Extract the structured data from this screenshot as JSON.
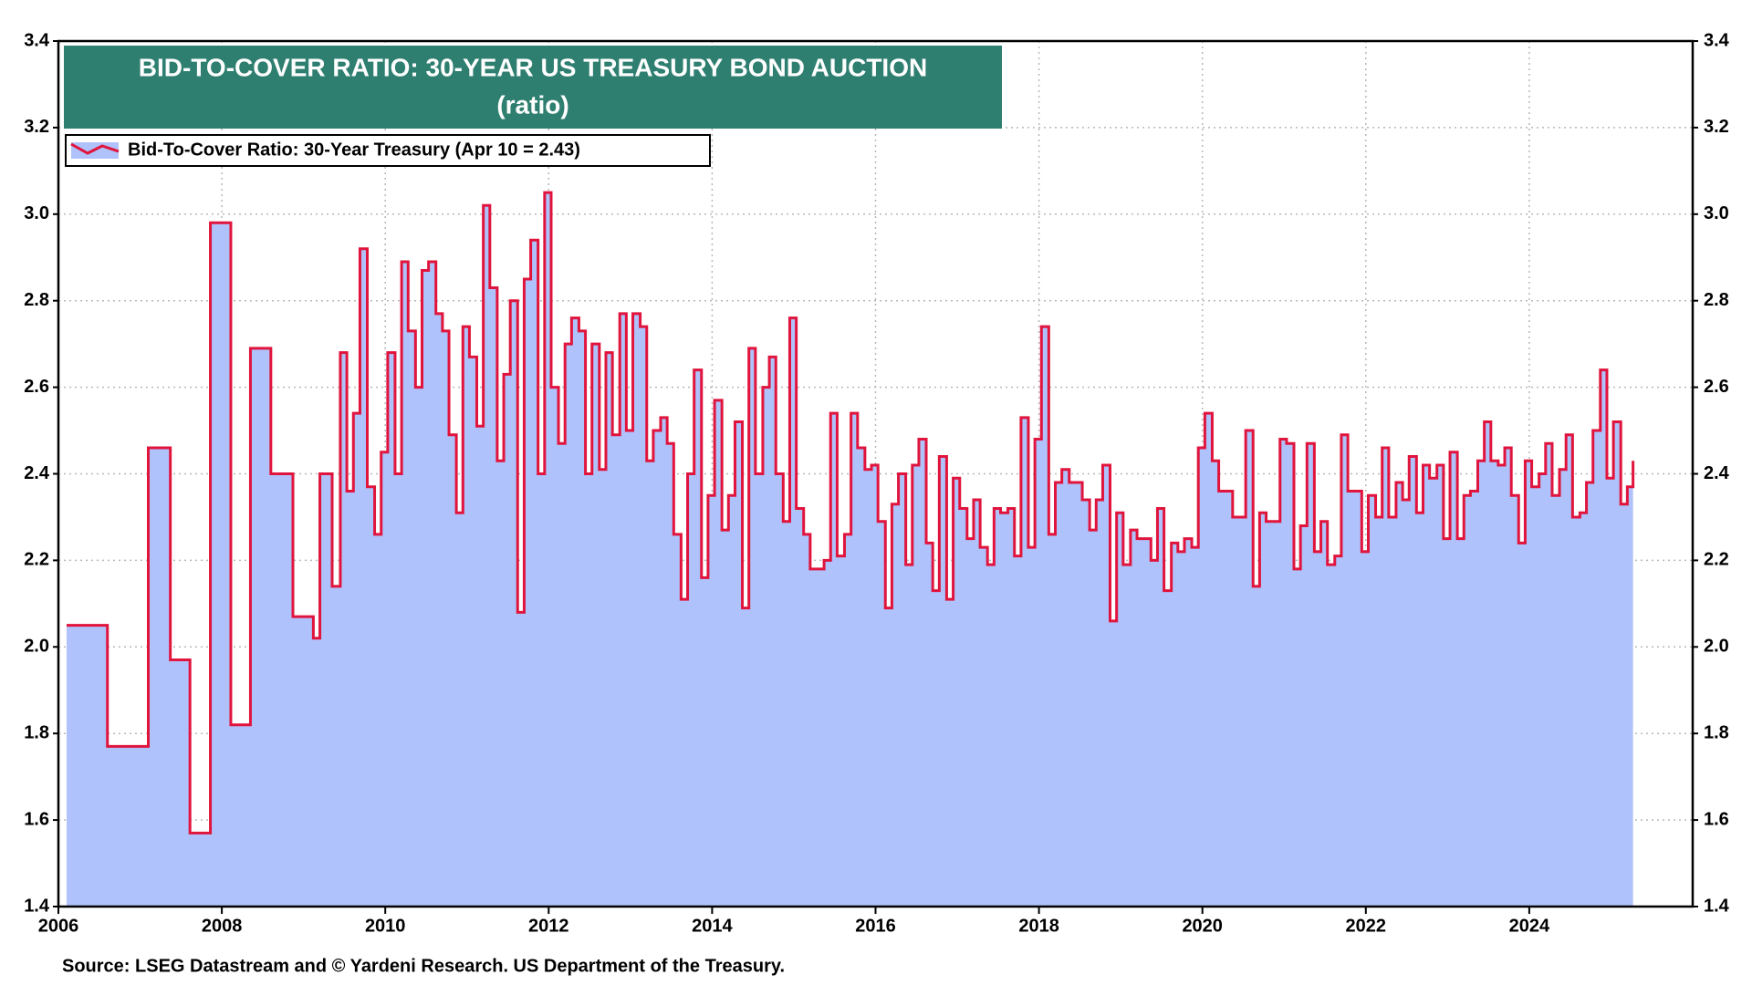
{
  "chart_data": {
    "type": "line",
    "step": true,
    "title": "BID-TO-COVER RATIO: 30-YEAR US TREASURY BOND AUCTION",
    "subtitle": "(ratio)",
    "source": "Source: LSEG Datastream and © Yardeni Research. US Department of the Treasury.",
    "xlim": [
      2006,
      2026
    ],
    "xticks": [
      2006,
      2008,
      2010,
      2012,
      2014,
      2016,
      2018,
      2020,
      2022,
      2024
    ],
    "ylim": [
      1.4,
      3.4
    ],
    "yticks": [
      1.4,
      1.6,
      1.8,
      {
        "value": 2,
        "label": "2.0"
      },
      2.2,
      2.4,
      2.6,
      2.8,
      {
        "value": 3,
        "label": "3.0"
      },
      3.2,
      3.4
    ],
    "grid": true,
    "legend": "top-left",
    "fill_color": "#b0c2fb",
    "x": [
      2006.1,
      2006.6,
      2007.1,
      2007.37,
      2007.61,
      2007.86,
      2008.11,
      2008.35,
      2008.6,
      2008.87,
      2009.12,
      2009.2,
      2009.35,
      2009.45,
      2009.53,
      2009.61,
      2009.69,
      2009.78,
      2009.87,
      2009.95,
      2010.03,
      2010.12,
      2010.2,
      2010.28,
      2010.37,
      2010.45,
      2010.53,
      2010.62,
      2010.7,
      2010.78,
      2010.87,
      2010.95,
      2011.03,
      2011.12,
      2011.2,
      2011.28,
      2011.37,
      2011.45,
      2011.53,
      2011.62,
      2011.7,
      2011.78,
      2011.87,
      2011.95,
      2012.03,
      2012.12,
      2012.2,
      2012.28,
      2012.37,
      2012.45,
      2012.53,
      2012.62,
      2012.7,
      2012.78,
      2012.87,
      2012.95,
      2013.03,
      2013.12,
      2013.2,
      2013.28,
      2013.37,
      2013.45,
      2013.53,
      2013.62,
      2013.7,
      2013.78,
      2013.87,
      2013.95,
      2014.03,
      2014.12,
      2014.2,
      2014.28,
      2014.37,
      2014.45,
      2014.53,
      2014.62,
      2014.7,
      2014.78,
      2014.87,
      2014.95,
      2015.03,
      2015.12,
      2015.2,
      2015.37,
      2015.45,
      2015.53,
      2015.62,
      2015.7,
      2015.78,
      2015.87,
      2015.95,
      2016.03,
      2016.12,
      2016.2,
      2016.28,
      2016.37,
      2016.45,
      2016.53,
      2016.62,
      2016.7,
      2016.78,
      2016.87,
      2016.95,
      2017.03,
      2017.12,
      2017.2,
      2017.28,
      2017.37,
      2017.45,
      2017.53,
      2017.62,
      2017.7,
      2017.78,
      2017.87,
      2017.95,
      2018.03,
      2018.12,
      2018.2,
      2018.28,
      2018.37,
      2018.53,
      2018.62,
      2018.7,
      2018.78,
      2018.87,
      2018.95,
      2019.03,
      2019.12,
      2019.2,
      2019.37,
      2019.45,
      2019.53,
      2019.62,
      2019.7,
      2019.78,
      2019.87,
      2019.95,
      2020.03,
      2020.12,
      2020.2,
      2020.37,
      2020.53,
      2020.62,
      2020.7,
      2020.78,
      2020.95,
      2021.03,
      2021.12,
      2021.2,
      2021.28,
      2021.37,
      2021.45,
      2021.53,
      2021.62,
      2021.7,
      2021.78,
      2021.95,
      2022.03,
      2022.12,
      2022.2,
      2022.28,
      2022.37,
      2022.45,
      2022.53,
      2022.62,
      2022.7,
      2022.78,
      2022.87,
      2022.95,
      2023.03,
      2023.12,
      2023.2,
      2023.28,
      2023.37,
      2023.45,
      2023.53,
      2023.62,
      2023.7,
      2023.78,
      2023.87,
      2023.95,
      2024.03,
      2024.12,
      2024.2,
      2024.28,
      2024.37,
      2024.45,
      2024.53,
      2024.62,
      2024.7,
      2024.78,
      2024.87,
      2024.95,
      2025.03,
      2025.12,
      2025.2,
      2025.27
    ],
    "series": [
      {
        "name": "Bid-To-Cover Ratio: 30-Year Treasury (Apr 10 = 2.43)",
        "color": "#e0143c",
        "values": [
          2.05,
          1.77,
          2.46,
          1.97,
          1.57,
          2.98,
          1.82,
          2.69,
          2.4,
          2.07,
          2.02,
          2.4,
          2.14,
          2.68,
          2.36,
          2.54,
          2.92,
          2.37,
          2.26,
          2.45,
          2.68,
          2.4,
          2.89,
          2.73,
          2.6,
          2.87,
          2.89,
          2.77,
          2.73,
          2.49,
          2.31,
          2.74,
          2.67,
          2.51,
          3.02,
          2.83,
          2.43,
          2.63,
          2.8,
          2.08,
          2.85,
          2.94,
          2.4,
          3.05,
          2.6,
          2.47,
          2.7,
          2.76,
          2.73,
          2.4,
          2.7,
          2.41,
          2.68,
          2.49,
          2.77,
          2.5,
          2.77,
          2.74,
          2.43,
          2.5,
          2.53,
          2.47,
          2.26,
          2.11,
          2.4,
          2.64,
          2.16,
          2.35,
          2.57,
          2.27,
          2.35,
          2.52,
          2.09,
          2.69,
          2.4,
          2.6,
          2.67,
          2.4,
          2.29,
          2.76,
          2.32,
          2.26,
          2.18,
          2.2,
          2.54,
          2.21,
          2.26,
          2.54,
          2.46,
          2.41,
          2.42,
          2.29,
          2.09,
          2.33,
          2.4,
          2.19,
          2.42,
          2.48,
          2.24,
          2.13,
          2.44,
          2.11,
          2.39,
          2.32,
          2.25,
          2.34,
          2.23,
          2.19,
          2.32,
          2.31,
          2.32,
          2.21,
          2.53,
          2.23,
          2.48,
          2.74,
          2.26,
          2.38,
          2.41,
          2.38,
          2.34,
          2.27,
          2.34,
          2.42,
          2.06,
          2.31,
          2.19,
          2.27,
          2.25,
          2.2,
          2.32,
          2.13,
          2.24,
          2.22,
          2.25,
          2.23,
          2.46,
          2.54,
          2.43,
          2.36,
          2.3,
          2.5,
          2.14,
          2.31,
          2.29,
          2.48,
          2.47,
          2.18,
          2.28,
          2.47,
          2.22,
          2.29,
          2.19,
          2.21,
          2.49,
          2.36,
          2.22,
          2.35,
          2.3,
          2.46,
          2.3,
          2.38,
          2.34,
          2.44,
          2.31,
          2.42,
          2.39,
          2.42,
          2.25,
          2.45,
          2.25,
          2.35,
          2.36,
          2.43,
          2.52,
          2.43,
          2.42,
          2.46,
          2.35,
          2.24,
          2.43,
          2.37,
          2.4,
          2.47,
          2.35,
          2.41,
          2.49,
          2.3,
          2.31,
          2.38,
          2.5,
          2.64,
          2.39,
          2.52,
          2.33,
          2.37,
          2.43
        ]
      }
    ]
  }
}
